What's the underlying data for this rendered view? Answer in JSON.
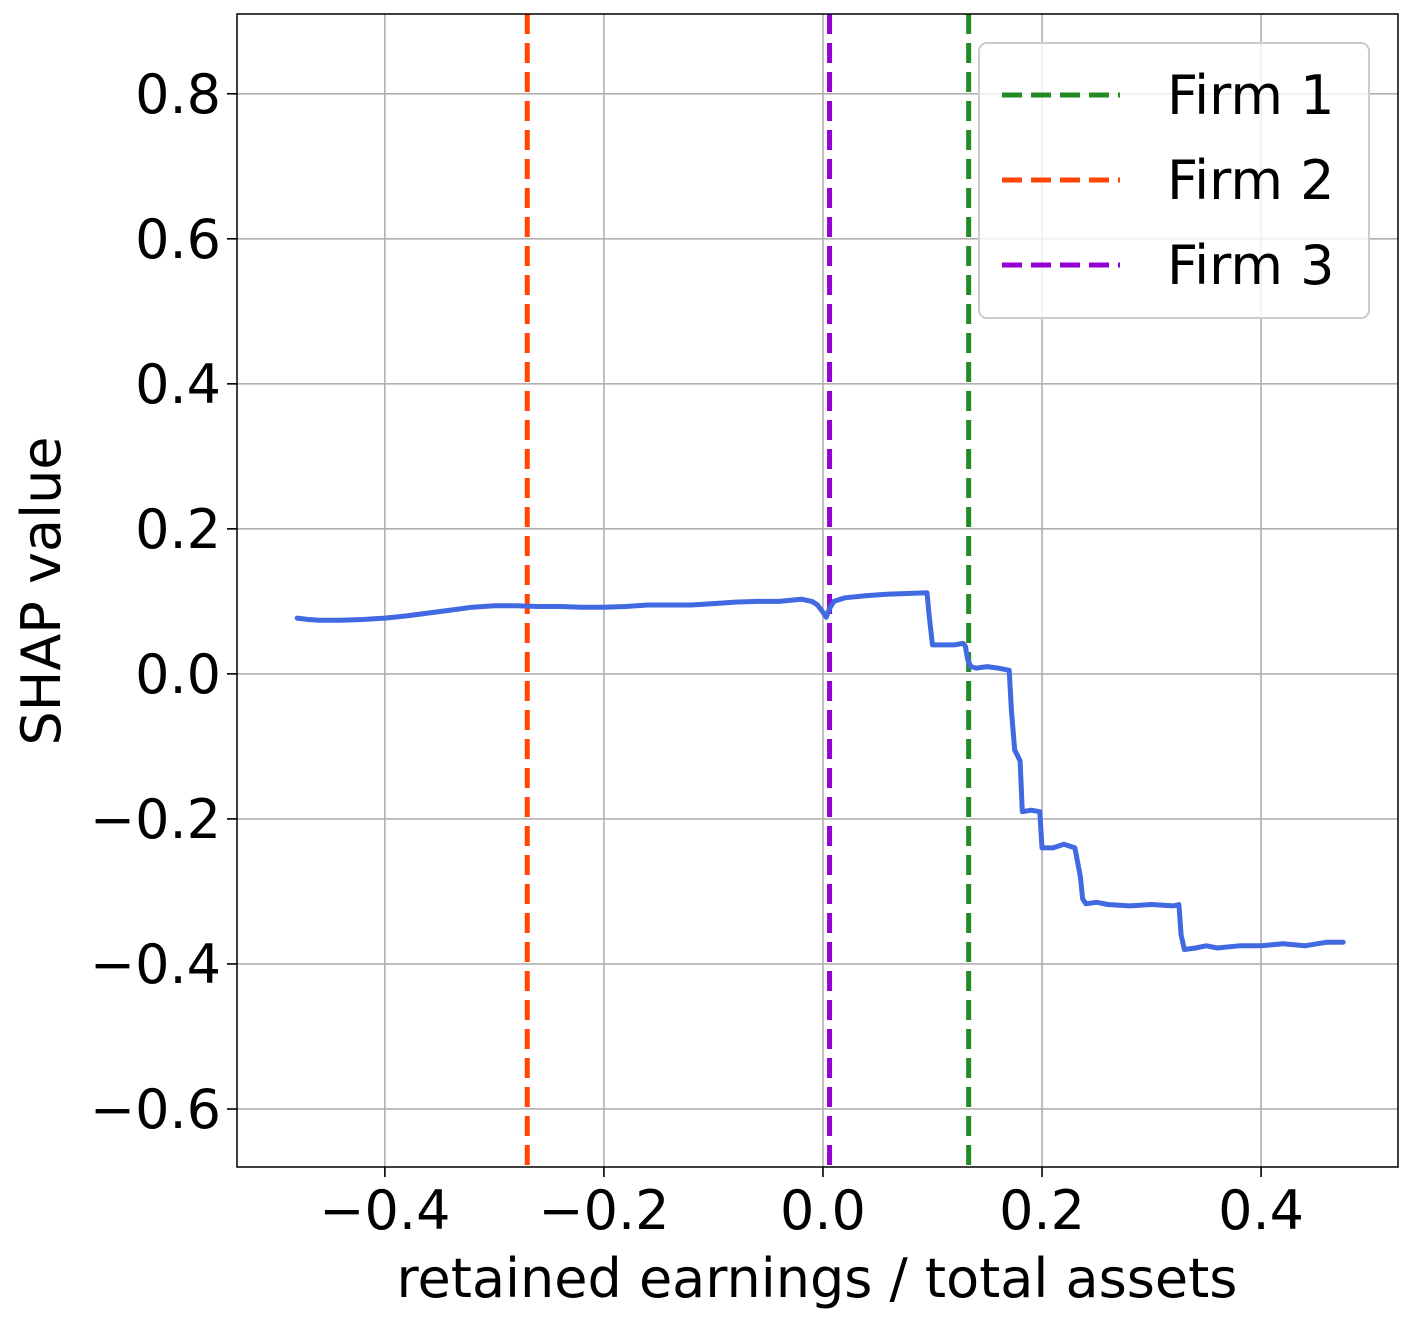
{
  "chart_data": {
    "type": "line",
    "xlabel": "retained earnings / total assets",
    "ylabel": "SHAP value",
    "xlim": [
      -0.535,
      0.525
    ],
    "ylim": [
      -0.68,
      0.91
    ],
    "xticks": [
      -0.4,
      -0.2,
      0.0,
      0.2,
      0.4
    ],
    "xtick_labels": [
      "−0.4",
      "−0.2",
      "0.0",
      "0.2",
      "0.4"
    ],
    "yticks": [
      -0.6,
      -0.4,
      -0.2,
      0.0,
      0.2,
      0.4,
      0.6,
      0.8
    ],
    "ytick_labels": [
      "−0.6",
      "−0.4",
      "−0.2",
      "0.0",
      "0.2",
      "0.4",
      "0.6",
      "0.8"
    ],
    "grid": true,
    "legend_position": "top-right",
    "series": [
      {
        "color": "#4169e1",
        "x": [
          -0.48,
          -0.47,
          -0.46,
          -0.44,
          -0.42,
          -0.4,
          -0.38,
          -0.36,
          -0.34,
          -0.32,
          -0.3,
          -0.28,
          -0.26,
          -0.24,
          -0.22,
          -0.2,
          -0.18,
          -0.16,
          -0.14,
          -0.12,
          -0.1,
          -0.08,
          -0.06,
          -0.04,
          -0.02,
          -0.01,
          -0.005,
          0.0,
          0.003,
          0.006,
          0.01,
          0.02,
          0.04,
          0.06,
          0.08,
          0.095,
          0.097,
          0.1,
          0.102,
          0.11,
          0.12,
          0.128,
          0.13,
          0.132,
          0.135,
          0.14,
          0.15,
          0.16,
          0.17,
          0.172,
          0.175,
          0.18,
          0.182,
          0.19,
          0.198,
          0.2,
          0.21,
          0.22,
          0.23,
          0.235,
          0.237,
          0.24,
          0.25,
          0.26,
          0.28,
          0.3,
          0.32,
          0.325,
          0.327,
          0.33,
          0.34,
          0.35,
          0.36,
          0.38,
          0.4,
          0.42,
          0.44,
          0.46,
          0.475
        ],
        "y": [
          0.077,
          0.075,
          0.074,
          0.074,
          0.075,
          0.077,
          0.08,
          0.084,
          0.088,
          0.092,
          0.094,
          0.094,
          0.093,
          0.093,
          0.092,
          0.092,
          0.093,
          0.095,
          0.095,
          0.095,
          0.097,
          0.099,
          0.1,
          0.1,
          0.103,
          0.1,
          0.095,
          0.085,
          0.078,
          0.09,
          0.1,
          0.105,
          0.108,
          0.11,
          0.111,
          0.112,
          0.08,
          0.04,
          0.04,
          0.04,
          0.04,
          0.042,
          0.038,
          0.02,
          0.01,
          0.008,
          0.01,
          0.008,
          0.005,
          -0.05,
          -0.105,
          -0.12,
          -0.19,
          -0.188,
          -0.19,
          -0.24,
          -0.24,
          -0.235,
          -0.24,
          -0.28,
          -0.31,
          -0.317,
          -0.315,
          -0.318,
          -0.32,
          -0.318,
          -0.32,
          -0.318,
          -0.36,
          -0.38,
          -0.378,
          -0.375,
          -0.378,
          -0.375,
          -0.375,
          -0.372,
          -0.375,
          -0.37,
          -0.37
        ]
      }
    ],
    "vlines": [
      {
        "name": "Firm 1",
        "x": 0.133,
        "color": "#228b22"
      },
      {
        "name": "Firm 2",
        "x": -0.27,
        "color": "#ff4500"
      },
      {
        "name": "Firm 3",
        "x": 0.006,
        "color": "#9400d3"
      }
    ]
  }
}
